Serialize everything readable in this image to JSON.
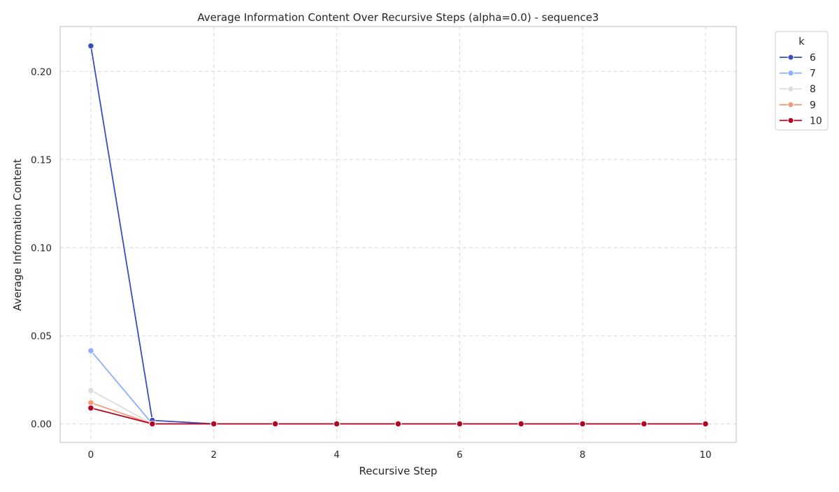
{
  "chart_data": {
    "type": "line",
    "title": "Average Information Content Over Recursive Steps (alpha=0.0) - sequence3",
    "xlabel": "Recursive Step",
    "ylabel": "Average Information Content",
    "xlim": [
      -0.5,
      10.5
    ],
    "ylim": [
      -0.0105,
      0.2255
    ],
    "x_ticks": [
      0,
      2,
      4,
      6,
      8,
      10
    ],
    "y_ticks": [
      0.0,
      0.05,
      0.1,
      0.15,
      0.2
    ],
    "y_tick_labels": [
      "0.00",
      "0.05",
      "0.10",
      "0.15",
      "0.20"
    ],
    "grid": true,
    "legend": {
      "title": "k",
      "placement": "outside-top-right"
    },
    "series": [
      {
        "name": "6",
        "color": "#3b4cc0",
        "x": [
          0,
          1,
          2,
          3,
          4,
          5,
          6,
          7,
          8,
          9,
          10
        ],
        "values": [
          0.2145,
          0.002,
          0.0,
          0.0,
          0.0,
          0.0,
          0.0,
          0.0,
          0.0,
          0.0,
          0.0
        ]
      },
      {
        "name": "7",
        "color": "#8db0fe",
        "x": [
          0,
          1,
          2,
          3,
          4,
          5,
          6,
          7,
          8,
          9,
          10
        ],
        "values": [
          0.0415,
          0.0,
          0.0,
          0.0,
          0.0,
          0.0,
          0.0,
          0.0,
          0.0,
          0.0,
          0.0
        ]
      },
      {
        "name": "8",
        "color": "#dddddd",
        "x": [
          0,
          1,
          2,
          3,
          4,
          5,
          6,
          7,
          8,
          9,
          10
        ],
        "values": [
          0.019,
          0.0,
          0.0,
          0.0,
          0.0,
          0.0,
          0.0,
          0.0,
          0.0,
          0.0,
          0.0
        ]
      },
      {
        "name": "9",
        "color": "#f49a7b",
        "x": [
          0,
          1,
          2,
          3,
          4,
          5,
          6,
          7,
          8,
          9,
          10
        ],
        "values": [
          0.012,
          0.0,
          0.0,
          0.0,
          0.0,
          0.0,
          0.0,
          0.0,
          0.0,
          0.0,
          0.0
        ]
      },
      {
        "name": "10",
        "color": "#b40426",
        "x": [
          0,
          1,
          2,
          3,
          4,
          5,
          6,
          7,
          8,
          9,
          10
        ],
        "values": [
          0.009,
          0.0,
          0.0,
          0.0,
          0.0,
          0.0,
          0.0,
          0.0,
          0.0,
          0.0,
          0.0
        ]
      }
    ]
  }
}
